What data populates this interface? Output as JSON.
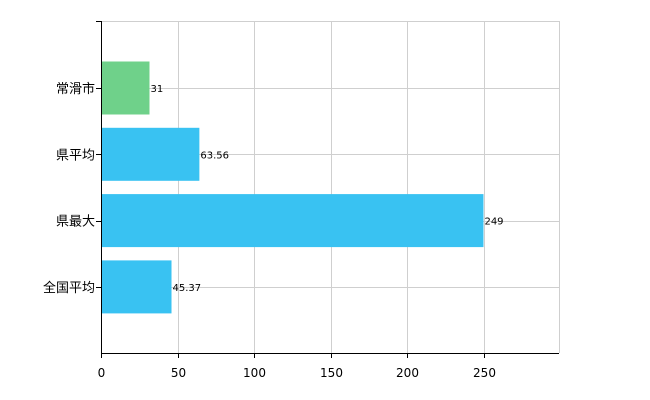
{
  "chart_data": {
    "type": "bar",
    "orientation": "horizontal",
    "categories": [
      "常滑市",
      "県平均",
      "県最大",
      "全国平均"
    ],
    "values": [
      31,
      63.56,
      249,
      45.37
    ],
    "value_labels": [
      "31",
      "63.56",
      "249",
      "45.37"
    ],
    "bar_colors": [
      "#6fd18a",
      "#39c2f2",
      "#39c2f2",
      "#39c2f2"
    ],
    "title": "",
    "xlabel": "",
    "ylabel": "",
    "xlim": [
      0,
      300
    ],
    "x_ticks": [
      0,
      50,
      100,
      150,
      200,
      250
    ],
    "x_tick_labels": [
      "0",
      "50",
      "100",
      "150",
      "200",
      "250"
    ],
    "grid": true,
    "legend": "none"
  }
}
